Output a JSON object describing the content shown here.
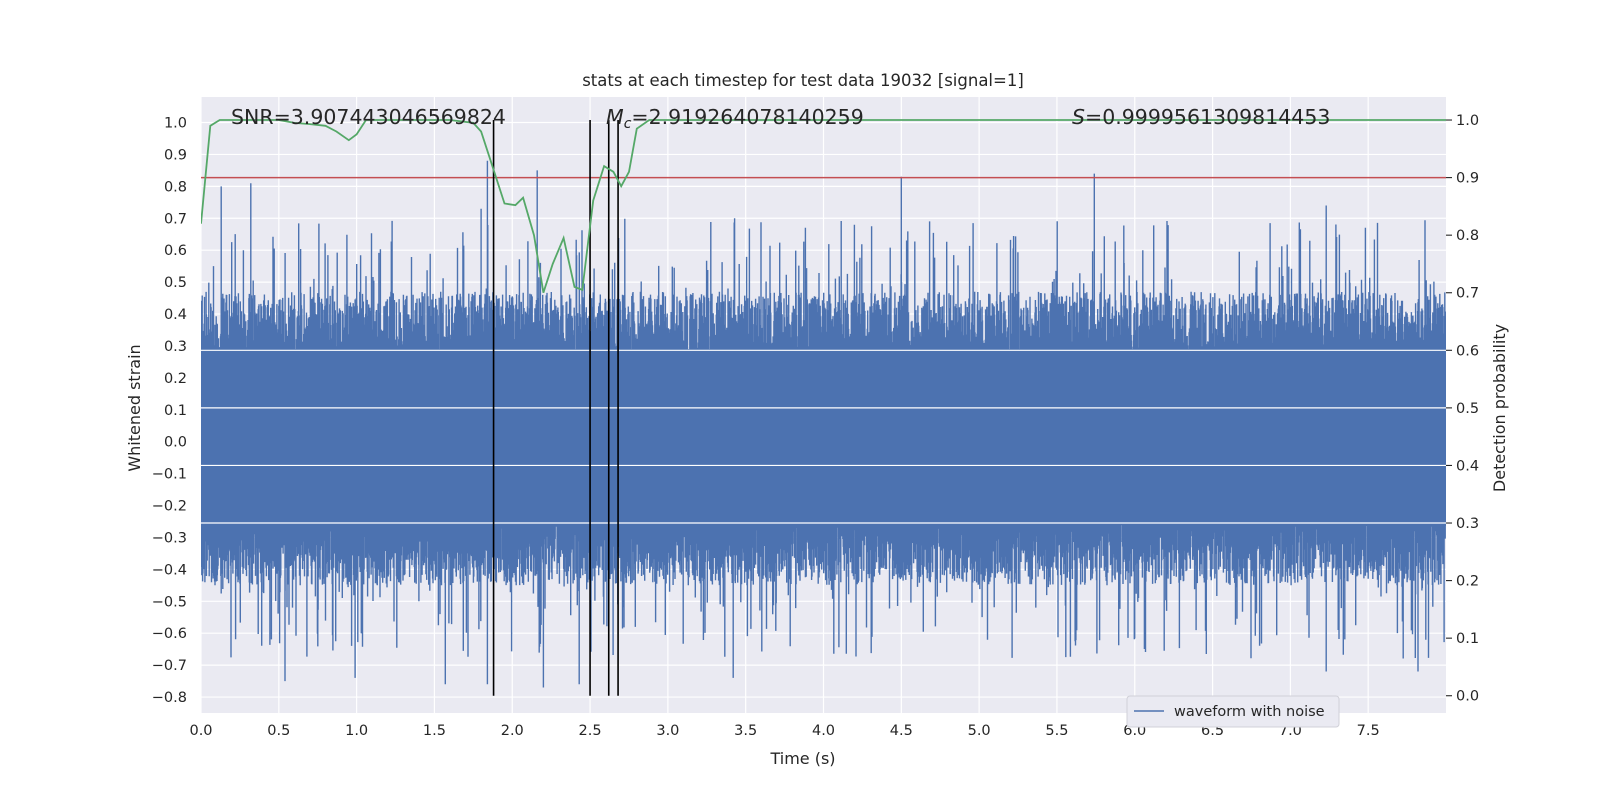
{
  "chart_data": {
    "type": "line",
    "title": "stats at each timestep for test data 19032 [signal=1]",
    "xlabel": "Time (s)",
    "ylabel_left": "Whitened strain",
    "ylabel_right": "Detection probability",
    "xlim": [
      0.0,
      8.0
    ],
    "ylim_left": [
      -0.85,
      1.08
    ],
    "ylim_right": [
      -0.03,
      1.04
    ],
    "x_ticks": [
      "0.0",
      "0.5",
      "1.0",
      "1.5",
      "2.0",
      "2.5",
      "3.0",
      "3.5",
      "4.0",
      "4.5",
      "5.0",
      "5.5",
      "6.0",
      "6.5",
      "7.0",
      "7.5"
    ],
    "y_left_ticks": [
      "1.0",
      "0.9",
      "0.8",
      "0.7",
      "0.6",
      "0.5",
      "0.4",
      "0.3",
      "0.2",
      "0.1",
      "0.0",
      "−0.1",
      "−0.2",
      "−0.3",
      "−0.4",
      "−0.5",
      "−0.6",
      "−0.7",
      "−0.8"
    ],
    "y_right_ticks": [
      "1.0",
      "0.9",
      "0.8",
      "0.7",
      "0.6",
      "0.5",
      "0.4",
      "0.3",
      "0.2",
      "0.1",
      "0.0"
    ],
    "grid": true,
    "legend_position": "lower right",
    "annotations": {
      "snr": "SNR=3.907443046569824",
      "mc_symbol": "M",
      "mc_sub": "c",
      "mc_value": "=2.919264078140259",
      "s_symbol": "S",
      "s_value": "=0.9999561309814453"
    },
    "threshold": {
      "value": 0.9,
      "axis": "right",
      "color": "#c44e52"
    },
    "vertical_lines": {
      "x": [
        1.88,
        2.5,
        2.62,
        2.68
      ],
      "color": "#000000"
    },
    "series": [
      {
        "name": "waveform with noise",
        "axis": "left",
        "color": "#4c72b0",
        "kind": "noisy strain trace",
        "typical_envelope": [
          -0.45,
          0.47
        ],
        "extreme_peaks": [
          {
            "x": 0.13,
            "y": 0.8
          },
          {
            "x": 0.32,
            "y": 0.81
          },
          {
            "x": 1.8,
            "y": 0.73
          },
          {
            "x": 1.84,
            "y": 0.88
          },
          {
            "x": 2.16,
            "y": 0.85
          },
          {
            "x": 4.5,
            "y": 0.83
          },
          {
            "x": 5.74,
            "y": 0.84
          },
          {
            "x": 7.23,
            "y": 0.74
          }
        ],
        "extreme_troughs": [
          {
            "x": 0.54,
            "y": -0.75
          },
          {
            "x": 0.99,
            "y": -0.74
          },
          {
            "x": 1.57,
            "y": -0.76
          },
          {
            "x": 1.84,
            "y": -0.76
          },
          {
            "x": 2.2,
            "y": -0.77
          },
          {
            "x": 2.43,
            "y": -0.76
          },
          {
            "x": 3.42,
            "y": -0.74
          },
          {
            "x": 7.23,
            "y": -0.72
          },
          {
            "x": 7.82,
            "y": -0.72
          }
        ]
      },
      {
        "name": "",
        "axis": "right",
        "color": "#55a868",
        "x": [
          0.0,
          0.06,
          0.12,
          0.2,
          0.3,
          0.4,
          0.5,
          0.6,
          0.7,
          0.8,
          0.87,
          0.95,
          1.0,
          1.06,
          1.2,
          1.4,
          1.6,
          1.75,
          1.8,
          1.86,
          1.95,
          2.02,
          2.07,
          2.14,
          2.2,
          2.26,
          2.33,
          2.4,
          2.45,
          2.52,
          2.59,
          2.65,
          2.7,
          2.75,
          2.8,
          2.88,
          3.0,
          3.5,
          4.0,
          4.5,
          5.0,
          5.5,
          6.0,
          6.5,
          7.0,
          7.5,
          8.0
        ],
        "y": [
          0.82,
          0.99,
          1.0,
          1.0,
          1.0,
          1.0,
          1.0,
          0.995,
          0.993,
          0.99,
          0.98,
          0.965,
          0.975,
          1.0,
          1.0,
          1.0,
          1.0,
          0.995,
          0.98,
          0.93,
          0.855,
          0.852,
          0.865,
          0.8,
          0.7,
          0.75,
          0.795,
          0.71,
          0.705,
          0.86,
          0.92,
          0.91,
          0.885,
          0.91,
          0.985,
          1.0,
          1.0,
          1.0,
          1.0,
          1.0,
          1.0,
          1.0,
          1.0,
          1.0,
          1.0,
          1.0,
          1.0
        ]
      }
    ]
  }
}
